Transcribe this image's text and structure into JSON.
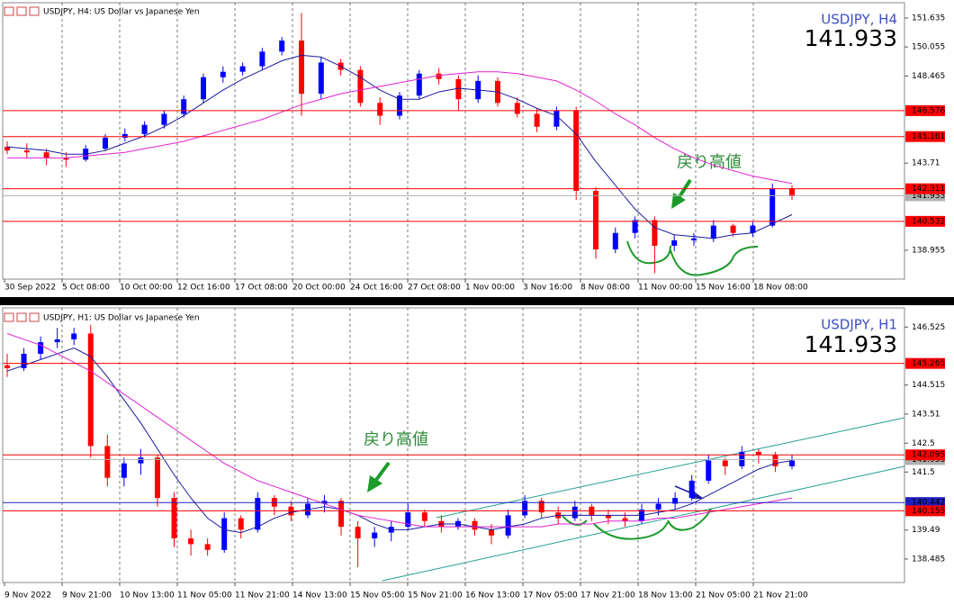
{
  "chart_data": [
    {
      "type": "candlestick",
      "title": "USDJPY, H4: US Dollar vs Japanese Yen",
      "symbol": "USDJPY, H4",
      "price": 141.933,
      "price_color": "#8ccbee",
      "annotation": "戻り高値",
      "up_color": "#0000ff",
      "down_color": "#ff0000",
      "ylim": [
        137.38,
        152.47
      ],
      "yticks": [
        151.635,
        150.055,
        148.465,
        143.71,
        138.955
      ],
      "xlabels": [
        "30 Sep 2022",
        "5 Oct 08:00",
        "10 Oct 00:00",
        "12 Oct 16:00",
        "17 Oct 08:00",
        "20 Oct 00:00",
        "24 Oct 16:00",
        "27 Oct 08:00",
        "1 Nov 00:00",
        "3 Nov 16:00",
        "8 Nov 08:00",
        "11 Nov 00:00",
        "15 Nov 16:00",
        "18 Nov 08:00"
      ],
      "hlines": [
        {
          "value": 146.576,
          "color": "#ff0000"
        },
        {
          "value": 145.161,
          "color": "#ff0000"
        },
        {
          "value": 142.311,
          "color": "#ff0000"
        },
        {
          "value": 140.532,
          "color": "#ff0000"
        }
      ],
      "ohlc": [
        [
          144.6,
          144.9,
          144.2,
          144.4
        ],
        [
          144.4,
          144.8,
          144.0,
          144.3
        ],
        [
          144.3,
          144.5,
          143.6,
          144.0
        ],
        [
          144.0,
          144.3,
          143.5,
          143.9
        ],
        [
          143.9,
          144.7,
          143.8,
          144.5
        ],
        [
          144.5,
          145.3,
          144.4,
          145.1
        ],
        [
          145.1,
          145.6,
          144.9,
          145.3
        ],
        [
          145.3,
          146.0,
          145.1,
          145.8
        ],
        [
          145.8,
          146.6,
          145.6,
          146.4
        ],
        [
          146.4,
          147.4,
          146.2,
          147.2
        ],
        [
          147.2,
          148.6,
          147.0,
          148.4
        ],
        [
          148.4,
          149.0,
          148.1,
          148.7
        ],
        [
          148.7,
          149.2,
          148.5,
          149.0
        ],
        [
          149.0,
          150.0,
          148.8,
          149.8
        ],
        [
          149.8,
          150.6,
          149.6,
          150.4
        ],
        [
          150.4,
          151.9,
          146.3,
          147.5
        ],
        [
          147.5,
          149.5,
          147.2,
          149.2
        ],
        [
          149.2,
          149.4,
          148.5,
          148.8
        ],
        [
          148.8,
          149.0,
          146.8,
          147.0
        ],
        [
          147.0,
          147.3,
          145.8,
          146.3
        ],
        [
          146.3,
          147.6,
          146.1,
          147.4
        ],
        [
          147.4,
          148.8,
          147.2,
          148.6
        ],
        [
          148.6,
          148.9,
          148.0,
          148.3
        ],
        [
          148.3,
          148.5,
          146.6,
          147.2
        ],
        [
          147.2,
          148.5,
          147.0,
          148.2
        ],
        [
          148.2,
          148.4,
          146.8,
          147.0
        ],
        [
          147.0,
          147.3,
          146.2,
          146.4
        ],
        [
          146.4,
          146.7,
          145.4,
          145.7
        ],
        [
          145.7,
          146.8,
          145.5,
          146.6
        ],
        [
          146.6,
          146.8,
          141.7,
          142.2
        ],
        [
          142.2,
          142.4,
          138.5,
          139.0
        ],
        [
          139.0,
          140.2,
          138.8,
          139.9
        ],
        [
          139.9,
          140.8,
          139.6,
          140.6
        ],
        [
          140.6,
          140.8,
          137.7,
          139.2
        ],
        [
          139.2,
          139.8,
          138.9,
          139.5
        ],
        [
          139.5,
          139.9,
          139.2,
          139.6
        ],
        [
          139.6,
          140.6,
          139.4,
          140.3
        ],
        [
          140.3,
          140.4,
          139.7,
          139.9
        ],
        [
          139.9,
          140.5,
          139.7,
          140.3
        ],
        [
          140.3,
          142.6,
          140.2,
          142.3
        ],
        [
          142.3,
          142.5,
          141.7,
          141.9
        ]
      ],
      "lines": [
        {
          "color": "#1a1aa0",
          "values": [
            144.6,
            144.5,
            144.4,
            144.2,
            144.2,
            144.4,
            144.8,
            145.2,
            145.7,
            146.3,
            147.0,
            147.7,
            148.3,
            148.8,
            149.3,
            149.6,
            149.5,
            149.0,
            148.4,
            147.7,
            147.2,
            147.2,
            147.6,
            147.8,
            147.7,
            147.6,
            147.2,
            146.7,
            146.3,
            145.3,
            143.8,
            142.5,
            141.2,
            140.2,
            139.8,
            139.7,
            139.6,
            139.8,
            139.9,
            140.4,
            140.9
          ]
        },
        {
          "color": "#e020d0",
          "values": [
            144.0,
            144.0,
            144.0,
            144.0,
            144.1,
            144.2,
            144.3,
            144.5,
            144.7,
            144.9,
            145.2,
            145.5,
            145.8,
            146.1,
            146.5,
            146.9,
            147.2,
            147.5,
            147.7,
            147.9,
            148.1,
            148.3,
            148.5,
            148.6,
            148.7,
            148.7,
            148.6,
            148.4,
            148.2,
            147.7,
            147.1,
            146.4,
            145.8,
            145.1,
            144.5,
            144.0,
            143.6,
            143.3,
            143.0,
            142.8,
            142.6
          ]
        }
      ]
    },
    {
      "type": "candlestick",
      "title": "USDJPY, H1: US Dollar vs Japanese Yen",
      "symbol": "USDJPY, H1",
      "price": 141.933,
      "price_color": "#f2b4b4",
      "annotation": "戻り高値",
      "up_color": "#0000ff",
      "down_color": "#ff0000",
      "ylim": [
        137.67,
        147.19
      ],
      "yticks": [
        146.525,
        144.515,
        143.51,
        142.5,
        141.5,
        139.49,
        138.485
      ],
      "xlabels": [
        "9 Nov 2022",
        "9 Nov 21:00",
        "10 Nov 13:00",
        "11 Nov 05:00",
        "11 Nov 21:00",
        "14 Nov 13:00",
        "15 Nov 05:00",
        "15 Nov 21:00",
        "16 Nov 13:00",
        "17 Nov 05:00",
        "17 Nov 21:00",
        "18 Nov 13:00",
        "21 Nov 05:00",
        "21 Nov 21:00"
      ],
      "hlines": [
        {
          "value": 145.265,
          "color": "#ff0000"
        },
        {
          "value": 142.095,
          "color": "#ff0000"
        },
        {
          "value": 140.442,
          "color": "#2020c0"
        },
        {
          "value": 140.155,
          "color": "#ff0000"
        }
      ],
      "ohlc": [
        [
          145.2,
          145.6,
          144.8,
          145.1
        ],
        [
          145.1,
          145.8,
          145.0,
          145.6
        ],
        [
          145.6,
          146.2,
          145.4,
          146.0
        ],
        [
          146.0,
          146.5,
          145.8,
          146.1
        ],
        [
          146.1,
          146.5,
          145.9,
          146.3
        ],
        [
          146.3,
          146.6,
          142.0,
          142.4
        ],
        [
          142.4,
          142.8,
          141.0,
          141.3
        ],
        [
          141.3,
          142.0,
          141.0,
          141.8
        ],
        [
          141.8,
          142.3,
          141.4,
          142.0
        ],
        [
          142.0,
          142.1,
          140.3,
          140.6
        ],
        [
          140.6,
          140.8,
          138.9,
          139.2
        ],
        [
          139.2,
          139.5,
          138.6,
          139.0
        ],
        [
          139.0,
          139.2,
          138.6,
          138.8
        ],
        [
          138.8,
          140.1,
          138.7,
          139.9
        ],
        [
          139.9,
          140.0,
          139.2,
          139.5
        ],
        [
          139.5,
          140.8,
          139.4,
          140.6
        ],
        [
          140.6,
          140.7,
          140.0,
          140.3
        ],
        [
          140.3,
          140.5,
          139.8,
          140.0
        ],
        [
          140.0,
          140.6,
          139.9,
          140.4
        ],
        [
          140.4,
          140.7,
          140.1,
          140.5
        ],
        [
          140.5,
          140.6,
          139.3,
          139.6
        ],
        [
          139.6,
          139.8,
          138.2,
          139.2
        ],
        [
          139.2,
          139.6,
          138.9,
          139.4
        ],
        [
          139.4,
          139.8,
          139.1,
          139.6
        ],
        [
          139.6,
          140.4,
          139.5,
          140.1
        ],
        [
          140.1,
          140.2,
          139.6,
          139.8
        ],
        [
          139.8,
          140.0,
          139.4,
          139.6
        ],
        [
          139.6,
          139.9,
          139.5,
          139.8
        ],
        [
          139.8,
          139.9,
          139.3,
          139.5
        ],
        [
          139.5,
          139.7,
          139.0,
          139.3
        ],
        [
          139.3,
          140.2,
          139.2,
          140.0
        ],
        [
          140.0,
          140.7,
          139.9,
          140.5
        ],
        [
          140.5,
          140.6,
          139.9,
          140.1
        ],
        [
          140.1,
          140.3,
          139.7,
          139.9
        ],
        [
          139.9,
          140.5,
          139.8,
          140.3
        ],
        [
          140.3,
          140.4,
          139.8,
          140.0
        ],
        [
          140.0,
          140.2,
          139.7,
          139.9
        ],
        [
          139.9,
          140.1,
          139.6,
          139.8
        ],
        [
          139.8,
          140.4,
          139.7,
          140.2
        ],
        [
          140.2,
          140.6,
          140.0,
          140.4
        ],
        [
          140.4,
          140.8,
          140.2,
          140.6
        ],
        [
          140.6,
          141.4,
          140.5,
          141.2
        ],
        [
          141.2,
          142.1,
          141.1,
          141.9
        ],
        [
          141.9,
          142.0,
          141.4,
          141.7
        ],
        [
          141.7,
          142.4,
          141.6,
          142.2
        ],
        [
          142.2,
          142.3,
          141.8,
          142.1
        ],
        [
          142.1,
          142.2,
          141.5,
          141.7
        ],
        [
          141.7,
          142.1,
          141.6,
          141.9
        ]
      ],
      "lines": [
        {
          "color": "#1a1aa0",
          "values": [
            145.0,
            145.2,
            145.4,
            145.6,
            145.8,
            145.5,
            144.8,
            144.0,
            143.2,
            142.3,
            141.4,
            140.6,
            139.9,
            139.5,
            139.4,
            139.6,
            139.9,
            140.1,
            140.2,
            140.3,
            140.2,
            140.0,
            139.7,
            139.5,
            139.5,
            139.6,
            139.7,
            139.7,
            139.6,
            139.5,
            139.6,
            139.7,
            139.9,
            140.0,
            140.0,
            140.0,
            140.0,
            140.0,
            140.0,
            140.1,
            140.2,
            140.4,
            140.7,
            141.0,
            141.3,
            141.6,
            141.8,
            141.9
          ]
        },
        {
          "color": "#e020d0",
          "values": [
            146.3,
            146.1,
            145.9,
            145.6,
            145.3,
            145.0,
            144.6,
            144.2,
            143.8,
            143.4,
            143.0,
            142.6,
            142.2,
            141.8,
            141.5,
            141.2,
            141.0,
            140.8,
            140.6,
            140.4,
            140.2,
            140.0,
            139.9,
            139.8,
            139.7,
            139.6,
            139.6,
            139.6,
            139.6,
            139.6,
            139.6,
            139.6,
            139.6,
            139.7,
            139.7,
            139.7,
            139.8,
            139.8,
            139.8,
            139.9,
            139.9,
            140.0,
            140.1,
            140.2,
            140.3,
            140.4,
            140.5,
            140.6
          ]
        }
      ]
    }
  ]
}
